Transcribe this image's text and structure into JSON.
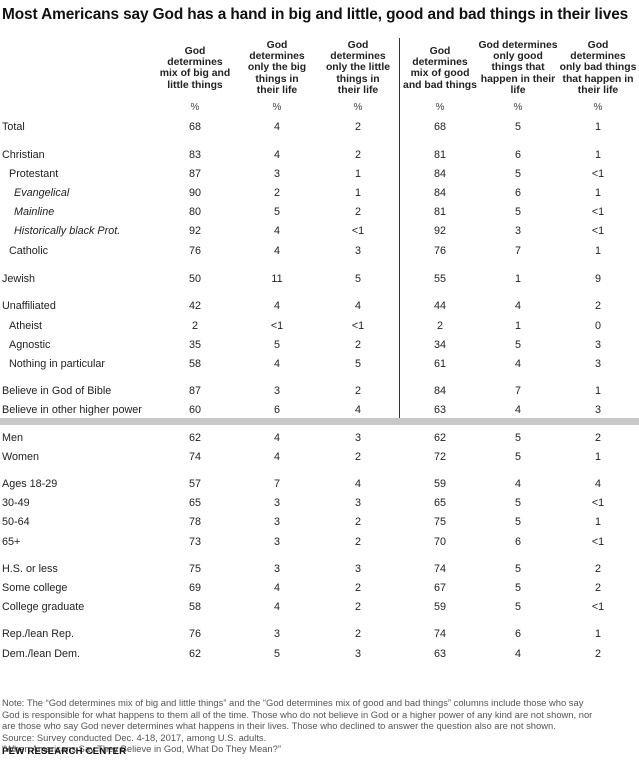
{
  "title": "Most Americans say God has a hand in big and little, good and bad things in their lives",
  "chart_data": {
    "type": "table",
    "columns": [
      "God determines mix of big and little things",
      "God determines only the big things in their life",
      "God determines only the little things in their life",
      "God determines mix of good and bad things",
      "God determines only good things that happen in their life",
      "God determines only bad things that happen in their life"
    ],
    "unit": "%",
    "rows": [
      {
        "label": "Total",
        "values": [
          "68",
          "4",
          "2",
          "68",
          "5",
          "1"
        ]
      },
      {
        "label": "Christian",
        "values": [
          "83",
          "4",
          "2",
          "81",
          "6",
          "1"
        ]
      },
      {
        "label": "Protestant",
        "values": [
          "87",
          "3",
          "1",
          "84",
          "5",
          "<1"
        ]
      },
      {
        "label": "Evangelical",
        "values": [
          "90",
          "2",
          "1",
          "84",
          "6",
          "1"
        ]
      },
      {
        "label": "Mainline",
        "values": [
          "80",
          "5",
          "2",
          "81",
          "5",
          "<1"
        ]
      },
      {
        "label": "Historically black Prot.",
        "values": [
          "92",
          "4",
          "<1",
          "92",
          "3",
          "<1"
        ]
      },
      {
        "label": "Catholic",
        "values": [
          "76",
          "4",
          "3",
          "76",
          "7",
          "1"
        ]
      },
      {
        "label": "Jewish",
        "values": [
          "50",
          "11",
          "5",
          "55",
          "1",
          "9"
        ]
      },
      {
        "label": "Unaffiliated",
        "values": [
          "42",
          "4",
          "4",
          "44",
          "4",
          "2"
        ]
      },
      {
        "label": "Atheist",
        "values": [
          "2",
          "<1",
          "<1",
          "2",
          "1",
          "0"
        ]
      },
      {
        "label": "Agnostic",
        "values": [
          "35",
          "5",
          "2",
          "34",
          "5",
          "3"
        ]
      },
      {
        "label": "Nothing in particular",
        "values": [
          "58",
          "4",
          "5",
          "61",
          "4",
          "3"
        ]
      },
      {
        "label": "Believe in God of Bible",
        "values": [
          "87",
          "3",
          "2",
          "84",
          "7",
          "1"
        ]
      },
      {
        "label": "Believe in other higher power",
        "values": [
          "60",
          "6",
          "4",
          "63",
          "4",
          "3"
        ]
      },
      {
        "label": "Men",
        "values": [
          "62",
          "4",
          "3",
          "62",
          "5",
          "2"
        ]
      },
      {
        "label": "Women",
        "values": [
          "74",
          "4",
          "2",
          "72",
          "5",
          "1"
        ]
      },
      {
        "label": "Ages 18-29",
        "values": [
          "57",
          "7",
          "4",
          "59",
          "4",
          "4"
        ]
      },
      {
        "label": "30-49",
        "values": [
          "65",
          "3",
          "3",
          "65",
          "5",
          "<1"
        ]
      },
      {
        "label": "50-64",
        "values": [
          "78",
          "3",
          "2",
          "75",
          "5",
          "1"
        ]
      },
      {
        "label": "65+",
        "values": [
          "73",
          "3",
          "2",
          "70",
          "6",
          "<1"
        ]
      },
      {
        "label": "H.S. or less",
        "values": [
          "75",
          "3",
          "3",
          "74",
          "5",
          "2"
        ]
      },
      {
        "label": "Some college",
        "values": [
          "69",
          "4",
          "2",
          "67",
          "5",
          "2"
        ]
      },
      {
        "label": "College graduate",
        "values": [
          "58",
          "4",
          "2",
          "59",
          "5",
          "<1"
        ]
      },
      {
        "label": "Rep./lean Rep.",
        "values": [
          "76",
          "3",
          "2",
          "74",
          "6",
          "1"
        ]
      },
      {
        "label": "Dem./lean Dem.",
        "values": [
          "62",
          "5",
          "3",
          "63",
          "4",
          "2"
        ]
      }
    ]
  },
  "notes": {
    "note_line1": "Note: The “God determines mix of big and little things” and the “God determines mix of good and bad things” columns include those who say",
    "note_line2": "God is responsible for what happens to them all of the time. Those who do not believe in God or a higher power of any kind are not shown, nor",
    "note_line3": "are those who say God never determines what happens in their lives. Those who declined to answer the question also are not shown.",
    "source": "Source: Survey conducted Dec. 4-18, 2017, among U.S. adults.",
    "report": "“When Americans Say They Believe in God, What Do They Mean?”"
  },
  "branding": {
    "logo_text": "PEW RESEARCH CENTER"
  }
}
